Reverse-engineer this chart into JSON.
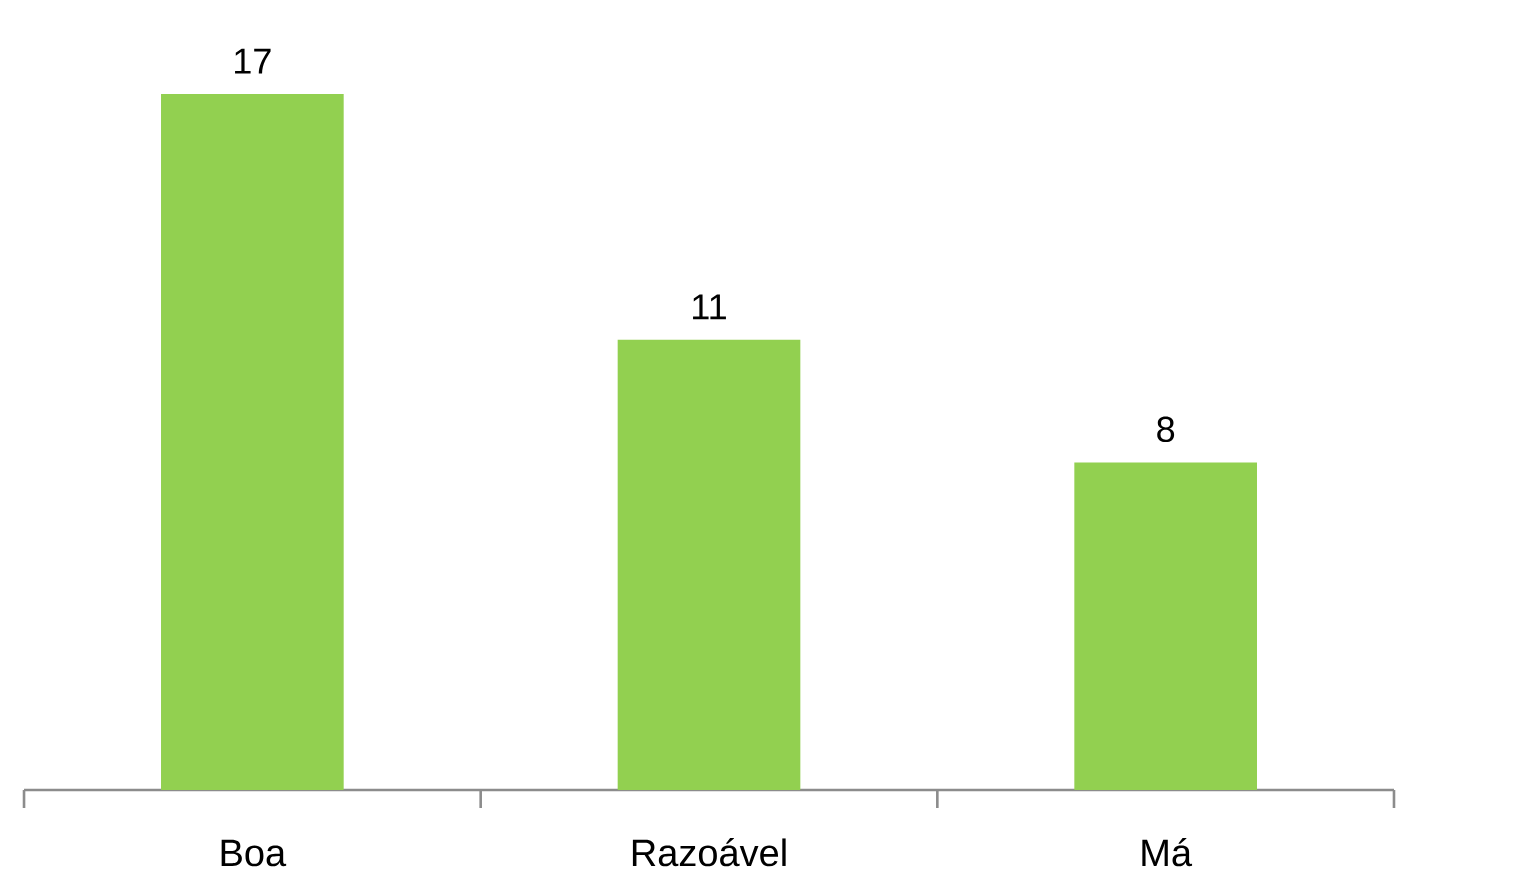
{
  "chart_data": {
    "type": "bar",
    "categories": [
      "Boa",
      "Razoável",
      "Má"
    ],
    "values": [
      17,
      11,
      8
    ],
    "color": "#92d050",
    "data_labels": true
  }
}
